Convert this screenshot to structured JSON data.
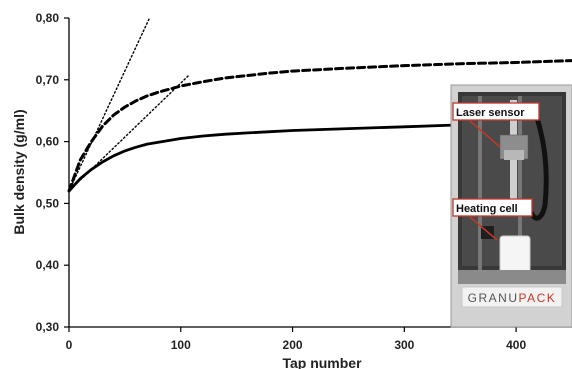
{
  "chart_data": {
    "type": "line",
    "xlabel": "Tap number",
    "ylabel": "Bulk density (g/ml)",
    "xlim": [
      0,
      450
    ],
    "ylim": [
      0.3,
      0.8
    ],
    "x_ticks": [
      0,
      100,
      200,
      300,
      400
    ],
    "x_tick_labels": [
      "0",
      "100",
      "200",
      "300",
      "400"
    ],
    "y_ticks": [
      0.3,
      0.4,
      0.5,
      0.6,
      0.7,
      0.8
    ],
    "y_tick_labels": [
      "0,30",
      "0,40",
      "0,50",
      "0,60",
      "0,70",
      "0,80"
    ],
    "grid": false,
    "series": [
      {
        "style": "dashed",
        "x": [
          0,
          10,
          20,
          30,
          40,
          50,
          60,
          70,
          80,
          90,
          100,
          120,
          140,
          160,
          180,
          200,
          250,
          300,
          350,
          400,
          450
        ],
        "values": [
          0.52,
          0.57,
          0.6,
          0.625,
          0.643,
          0.656,
          0.666,
          0.674,
          0.68,
          0.685,
          0.69,
          0.697,
          0.703,
          0.707,
          0.711,
          0.714,
          0.719,
          0.723,
          0.726,
          0.728,
          0.731
        ]
      },
      {
        "style": "solid",
        "x": [
          0,
          10,
          20,
          30,
          40,
          50,
          60,
          70,
          80,
          90,
          100,
          120,
          140,
          160,
          180,
          200,
          250,
          300,
          350,
          400
        ],
        "values": [
          0.52,
          0.54,
          0.555,
          0.567,
          0.577,
          0.585,
          0.591,
          0.596,
          0.599,
          0.602,
          0.605,
          0.609,
          0.612,
          0.614,
          0.616,
          0.618,
          0.621,
          0.624,
          0.627,
          0.629
        ]
      },
      {
        "style": "dotted",
        "x": [
          0,
          72
        ],
        "values": [
          0.52,
          0.8
        ]
      },
      {
        "style": "dotted",
        "x": [
          0,
          107
        ],
        "values": [
          0.52,
          0.707
        ]
      }
    ],
    "inset": {
      "labels": [
        "Laser sensor",
        "Heating cell"
      ],
      "brand_prefix": "GRANU",
      "brand_suffix": "PACK"
    }
  }
}
